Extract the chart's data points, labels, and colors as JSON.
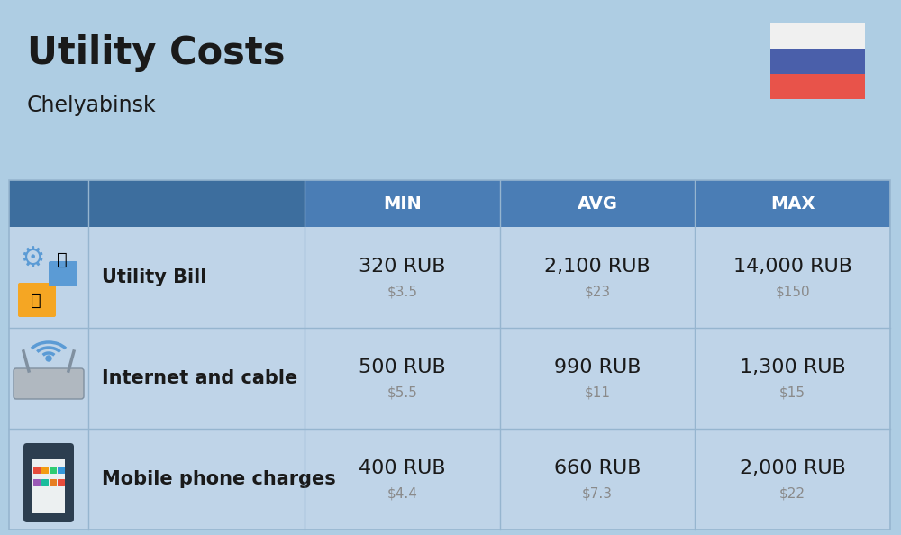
{
  "title": "Utility Costs",
  "subtitle": "Chelyabinsk",
  "bg_color": "#aecde3",
  "header_bg": "#4a7db5",
  "header_text_color": "#ffffff",
  "row_bg": "#bfd4e8",
  "separator_color": "#96b5cf",
  "col_headers": [
    "MIN",
    "AVG",
    "MAX"
  ],
  "rows": [
    {
      "label": "Utility Bill",
      "min_rub": "320 RUB",
      "min_usd": "$3.5",
      "avg_rub": "2,100 RUB",
      "avg_usd": "$23",
      "max_rub": "14,000 RUB",
      "max_usd": "$150"
    },
    {
      "label": "Internet and cable",
      "min_rub": "500 RUB",
      "min_usd": "$5.5",
      "avg_rub": "990 RUB",
      "avg_usd": "$11",
      "max_rub": "1,300 RUB",
      "max_usd": "$15"
    },
    {
      "label": "Mobile phone charges",
      "min_rub": "400 RUB",
      "min_usd": "$4.4",
      "avg_rub": "660 RUB",
      "avg_usd": "$7.3",
      "max_rub": "2,000 RUB",
      "max_usd": "$22"
    }
  ],
  "flag_colors": [
    "#f0f0f0",
    "#4a5faa",
    "#e8534a"
  ],
  "rub_fontsize": 16,
  "usd_fontsize": 11,
  "label_fontsize": 15,
  "header_fontsize": 14,
  "title_fontsize": 30,
  "subtitle_fontsize": 17
}
